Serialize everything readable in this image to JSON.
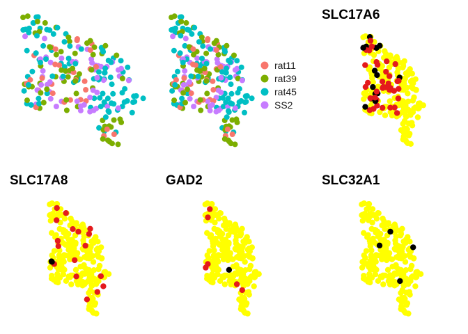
{
  "chart_data": {
    "type": "scatter",
    "colors": {
      "rat11": "#F8766D",
      "rat39": "#7CAE00",
      "rat45": "#00BFC4",
      "SS2": "#C77CFF",
      "background": "#FFFF00",
      "high": "#E41A1C",
      "highest": "#000000"
    },
    "legend": {
      "placement": "right of second panel",
      "entries": [
        "rat11",
        "rat39",
        "rat45",
        "SS2"
      ]
    },
    "panels": [
      {
        "id": "batch-1",
        "title": "",
        "mode": "batch"
      },
      {
        "id": "batch-2",
        "title": "",
        "mode": "batch"
      },
      {
        "id": "slc17a6",
        "title": "SLC17A6",
        "mode": "expression",
        "level": "high-cluster"
      },
      {
        "id": "slc17a8",
        "title": "SLC17A8",
        "mode": "expression",
        "level": "sparse"
      },
      {
        "id": "gad2",
        "title": "GAD2",
        "mode": "expression",
        "level": "rare"
      },
      {
        "id": "slc32a1",
        "title": "SLC32A1",
        "mode": "expression",
        "level": "single"
      }
    ]
  }
}
